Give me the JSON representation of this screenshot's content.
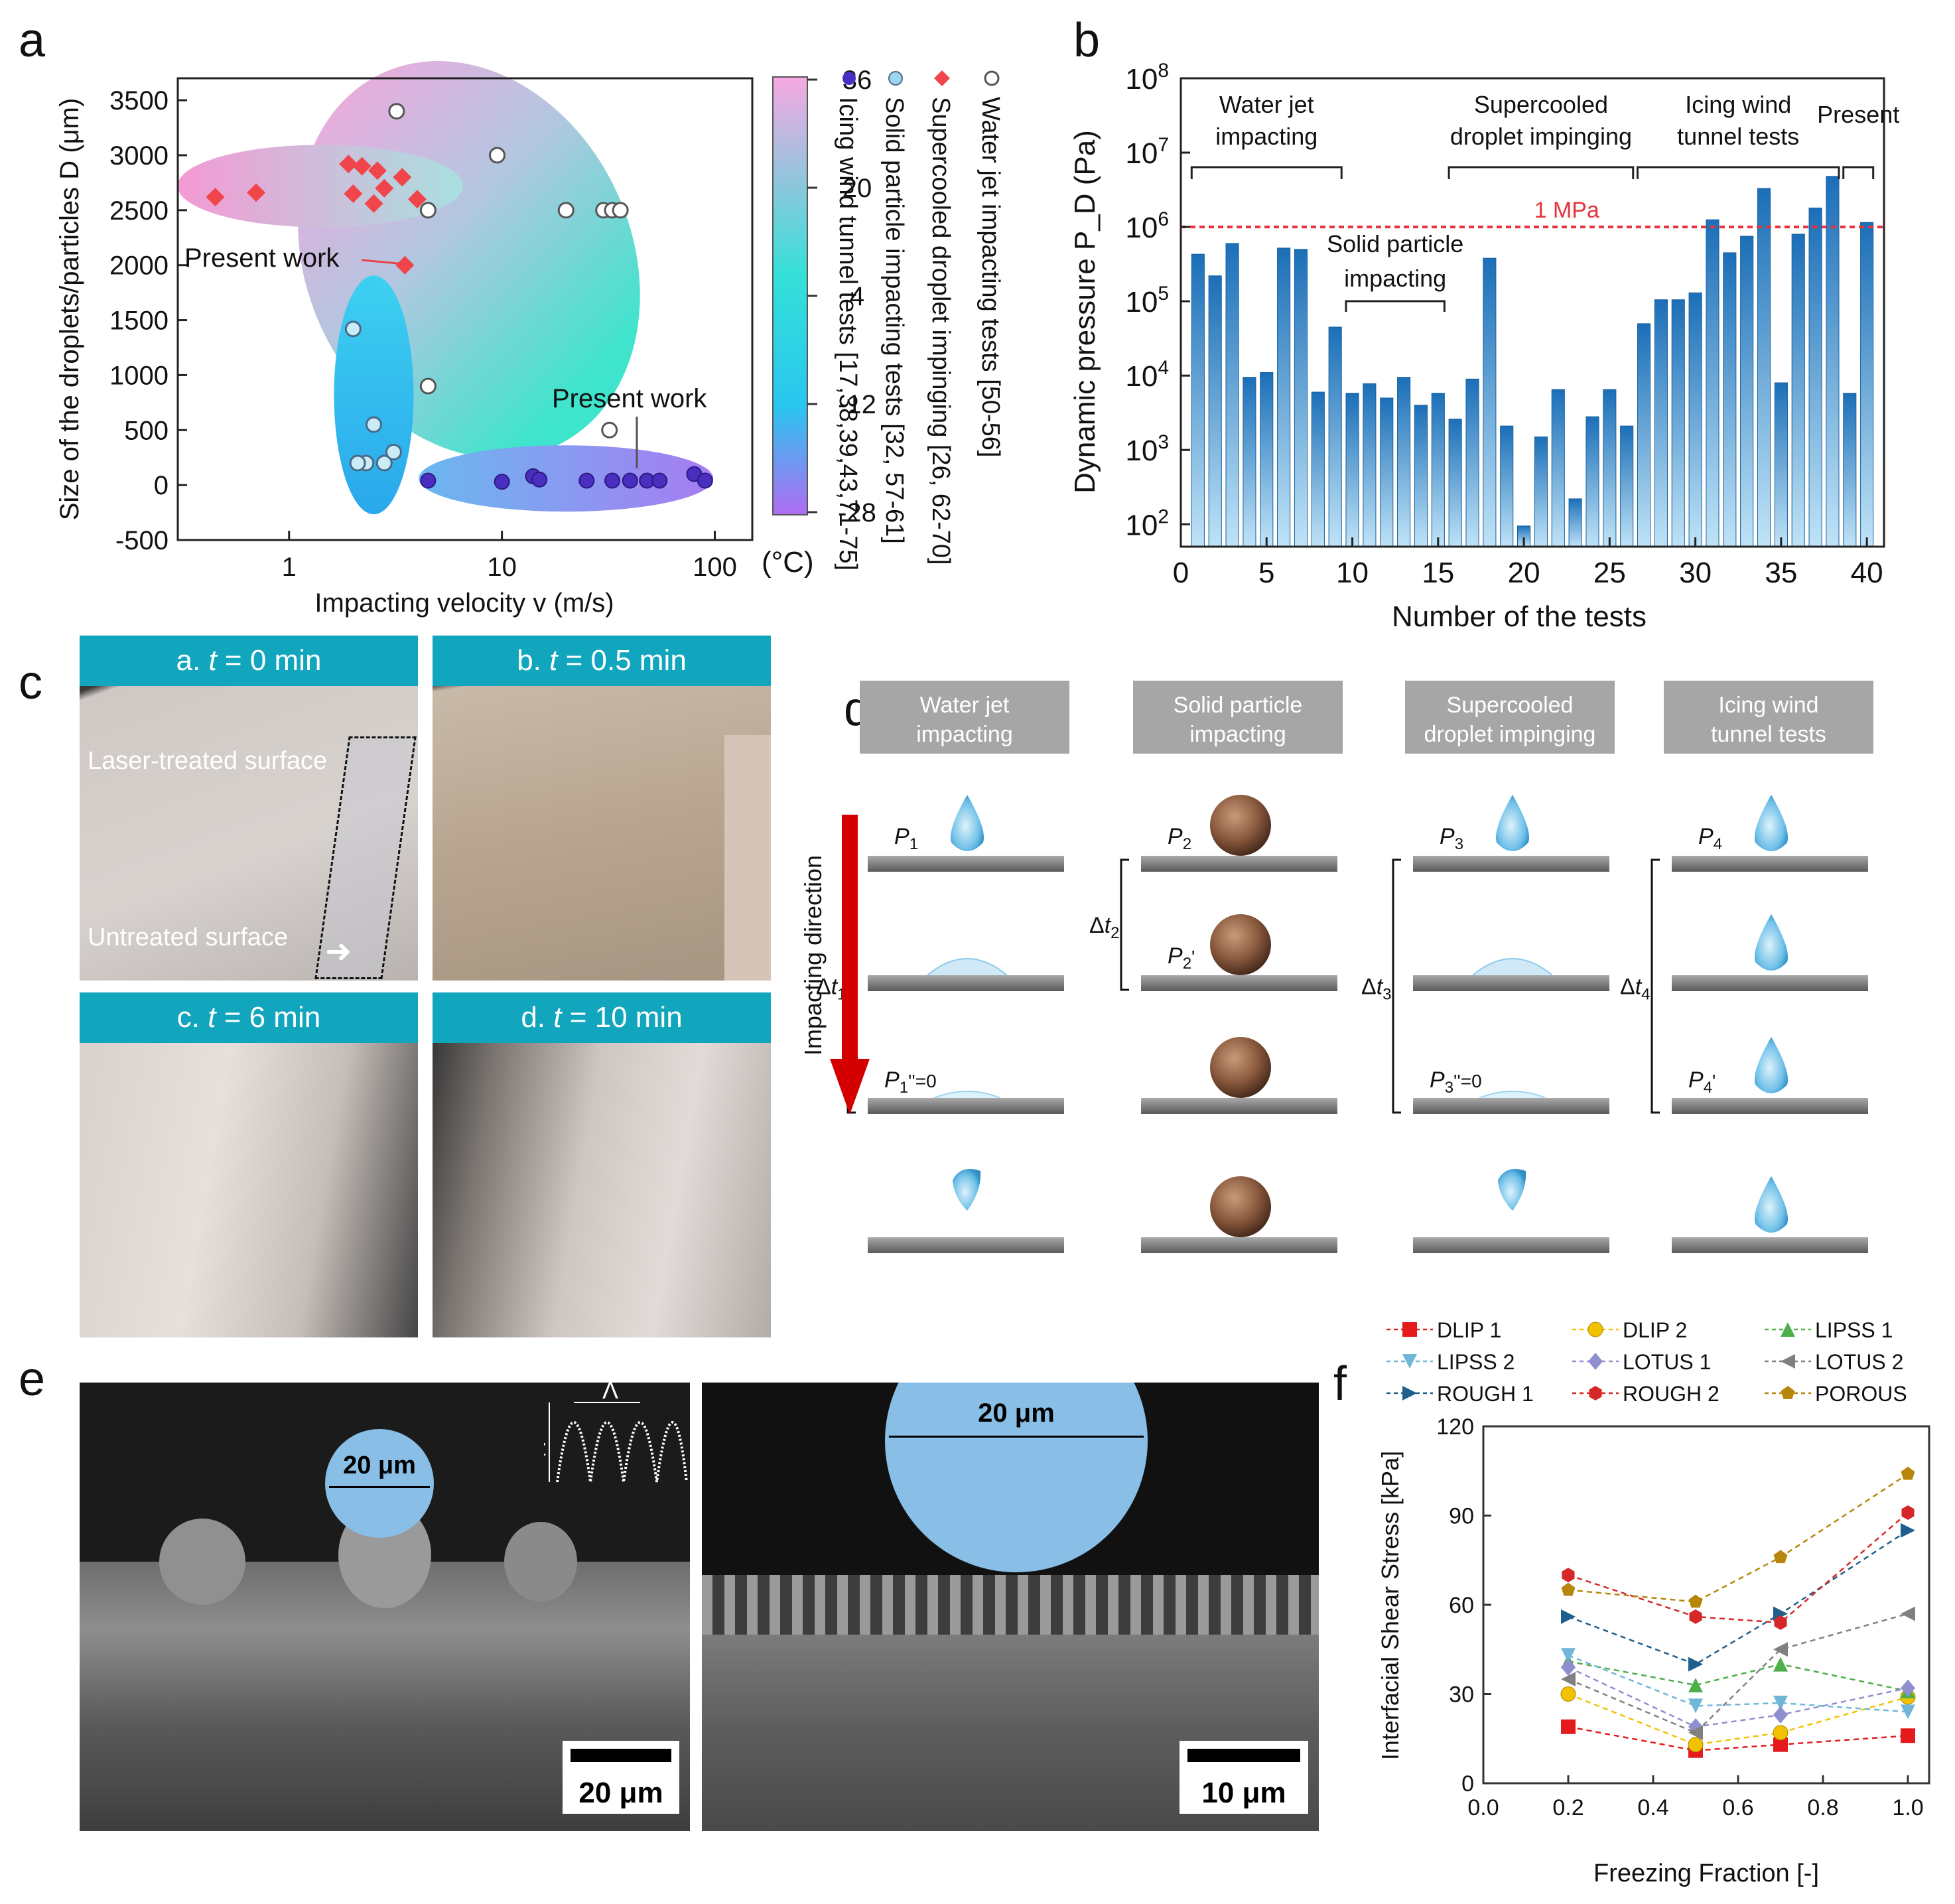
{
  "panel_labels": {
    "a": "a",
    "b": "b",
    "c": "c",
    "d": "d",
    "e": "e",
    "f": "f"
  },
  "chart_data": [
    {
      "id": "a",
      "type": "scatter",
      "xlabel": "Impacting velocity v (m/s)",
      "ylabel": "Size of the droplets/particles D (μm)",
      "xscale": "log",
      "xlim": [
        0.3,
        150
      ],
      "ylim": [
        -500,
        3700
      ],
      "xticks": [
        1,
        10,
        100
      ],
      "xticklabels": [
        "1",
        "10",
        "100"
      ],
      "yticks": [
        -500,
        0,
        500,
        1000,
        1500,
        2000,
        2500,
        3000,
        3500
      ],
      "yticklabels": [
        "-500",
        "0",
        "500",
        "1000",
        "1500",
        "2000",
        "2500",
        "3000",
        "3500"
      ],
      "colorbar": {
        "ticks": [
          "36",
          "20",
          "4",
          "-12",
          "-28"
        ],
        "unit": "(°C)",
        "range": [
          -28,
          36
        ]
      },
      "legend": [
        "Water jet impacting tests [50-56]",
        "Solid particle impacting tests [32, 57-61]",
        "Supercooled droplet impinging [26, 62-70]",
        "Icing wind tunnel tests [17,38,39,43,71-75]"
      ],
      "annotations": [
        "Present work",
        "Present work"
      ],
      "series": [
        {
          "name": "Water jet impacting tests",
          "marker": "open-circle",
          "points": [
            [
              3.2,
              3400
            ],
            [
              9.5,
              3000
            ],
            [
              4.5,
              2500
            ],
            [
              20,
              2500
            ],
            [
              30,
              2500
            ],
            [
              33,
              2500
            ],
            [
              36,
              2500
            ],
            [
              4.5,
              900
            ],
            [
              32,
              500
            ]
          ]
        },
        {
          "name": "Solid particle impacting tests",
          "marker": "circle",
          "points": [
            [
              2.0,
              1420
            ],
            [
              2.5,
              550
            ],
            [
              2.3,
              200
            ],
            [
              2.8,
              200
            ],
            [
              3.1,
              300
            ],
            [
              2.1,
              200
            ]
          ]
        },
        {
          "name": "Supercooled droplet impinging",
          "marker": "diamond",
          "points": [
            [
              0.45,
              2620
            ],
            [
              0.7,
              2660
            ],
            [
              1.9,
              2920
            ],
            [
              2.2,
              2900
            ],
            [
              2.6,
              2860
            ],
            [
              3.4,
              2800
            ],
            [
              2.0,
              2650
            ],
            [
              2.8,
              2700
            ],
            [
              4.0,
              2600
            ],
            [
              2.5,
              2560
            ],
            [
              3.5,
              2000
            ]
          ]
        },
        {
          "name": "Icing wind tunnel tests",
          "marker": "circle",
          "points": [
            [
              4.5,
              40
            ],
            [
              10,
              30
            ],
            [
              14,
              80
            ],
            [
              15,
              50
            ],
            [
              25,
              40
            ],
            [
              33,
              40
            ],
            [
              40,
              40
            ],
            [
              48,
              40
            ],
            [
              55,
              40
            ],
            [
              80,
              100
            ],
            [
              90,
              40
            ]
          ]
        }
      ]
    },
    {
      "id": "b",
      "type": "bar",
      "xlabel": "Number of the tests",
      "ylabel": "Dynamic pressure P_D (Pa)",
      "yscale": "log",
      "ylim": [
        50,
        100000000.0
      ],
      "xlim": [
        0,
        41
      ],
      "xticks": [
        0,
        5,
        10,
        15,
        20,
        25,
        30,
        35,
        40
      ],
      "yticklabels": [
        "10^2",
        "10^3",
        "10^4",
        "10^5",
        "10^6",
        "10^7",
        "10^8"
      ],
      "reference_line": {
        "value": 1000000,
        "label": "1 MPa"
      },
      "groups": [
        {
          "label_lines": [
            "Water jet",
            "impacting"
          ],
          "from": 1,
          "to": 9
        },
        {
          "label_lines": [
            "Solid particle",
            "impacting"
          ],
          "from": 10,
          "to": 15
        },
        {
          "label_lines": [
            "Supercooled",
            "droplet impinging"
          ],
          "from": 16,
          "to": 26
        },
        {
          "label_lines": [
            "Icing wind",
            "tunnel tests"
          ],
          "from": 27,
          "to": 38
        },
        {
          "label_lines": [
            "Present"
          ],
          "from": 39,
          "to": 40
        }
      ],
      "values": [
        430000,
        220000,
        600000,
        9500,
        11000,
        520000,
        500000,
        6000,
        45000,
        5800,
        7800,
        5000,
        9500,
        4000,
        5800,
        2600,
        9000,
        380000,
        2100,
        95,
        1500,
        6500,
        220,
        2800,
        6500,
        2100,
        50000,
        105000,
        105000,
        130000,
        1250000,
        450000,
        750000,
        3300000,
        8000,
        800000,
        1800000,
        4800000,
        5800,
        1150000
      ]
    },
    {
      "id": "f",
      "type": "line",
      "xlabel": "Freezing Fraction [-]",
      "ylabel": "Interfacial Shear Stress [kPa]",
      "xlim": [
        0,
        1.05
      ],
      "ylim": [
        0,
        120
      ],
      "xticks": [
        0.0,
        0.2,
        0.4,
        0.6,
        0.8,
        1.0
      ],
      "xticklabels": [
        "0.0",
        "0.2",
        "0.4",
        "0.6",
        "0.8",
        "1.0"
      ],
      "yticks": [
        0,
        30,
        60,
        90,
        120
      ],
      "yticklabels": [
        "0",
        "30",
        "60",
        "90",
        "120"
      ],
      "x": [
        0.2,
        0.5,
        0.7,
        1.0
      ],
      "series": [
        {
          "name": "DLIP 1",
          "marker": "square",
          "color": "#e41a1c",
          "values": [
            19,
            11,
            13,
            16
          ]
        },
        {
          "name": "DLIP 2",
          "marker": "circle",
          "color": "#f2c200",
          "values": [
            30,
            13,
            17,
            29
          ]
        },
        {
          "name": "LIPSS 1",
          "marker": "triangle-up",
          "color": "#4daf4a",
          "values": [
            41,
            33,
            40,
            31
          ]
        },
        {
          "name": "LIPSS 2",
          "marker": "triangle-down",
          "color": "#6fb6d9",
          "values": [
            43,
            26,
            27,
            24
          ]
        },
        {
          "name": "LOTUS 1",
          "marker": "diamond",
          "color": "#8f8fd0",
          "values": [
            39,
            19,
            23,
            32
          ]
        },
        {
          "name": "LOTUS 2",
          "marker": "triangle-left",
          "color": "#808080",
          "values": [
            35,
            17,
            45,
            57
          ]
        },
        {
          "name": "ROUGH 1",
          "marker": "triangle-right",
          "color": "#1f5f8b",
          "values": [
            56,
            40,
            57,
            85
          ]
        },
        {
          "name": "ROUGH 2",
          "marker": "hexagon",
          "color": "#d62728",
          "values": [
            70,
            56,
            54,
            91
          ]
        },
        {
          "name": "POROUS",
          "marker": "pentagon",
          "color": "#b8860b",
          "values": [
            65,
            61,
            76,
            104
          ]
        }
      ]
    }
  ],
  "panel_c": {
    "photos": [
      {
        "prefix": "a. ",
        "var": "t",
        "rest": " = 0 min"
      },
      {
        "prefix": "b. ",
        "var": "t",
        "rest": " = 0.5 min"
      },
      {
        "prefix": "c. ",
        "var": "t",
        "rest": " = 6 min"
      },
      {
        "prefix": "d. ",
        "var": "t",
        "rest": " = 10 min"
      }
    ],
    "treated_label": "Laser-treated surface",
    "untreated_label": "Untreated surface"
  },
  "panel_d": {
    "columns": [
      {
        "title_lines": [
          "Water jet",
          "impacting"
        ],
        "p_top": "P1",
        "delta": "Δt1",
        "p_mid": "",
        "p_low": "P1''=0"
      },
      {
        "title_lines": [
          "Solid particle",
          "impacting"
        ],
        "p_top": "P2",
        "delta": "Δt2",
        "p_mid": "P2'",
        "p_low": ""
      },
      {
        "title_lines": [
          "Supercooled",
          "droplet impinging"
        ],
        "p_top": "P3",
        "delta": "Δt3",
        "p_mid": "",
        "p_low": "P3''=0"
      },
      {
        "title_lines": [
          "Icing wind",
          "tunnel tests"
        ],
        "p_top": "P4",
        "delta": "Δt4",
        "p_mid": "",
        "p_low": "P4'"
      }
    ],
    "direction_label": "Impacting direction"
  },
  "panel_e": {
    "left": {
      "circle_label": "20 μm",
      "scale_label": "20 μm",
      "inset_amp": "Rz",
      "inset_wave": "Λ"
    },
    "right": {
      "circle_label": "20 μm",
      "scale_label": "10 μm"
    }
  }
}
